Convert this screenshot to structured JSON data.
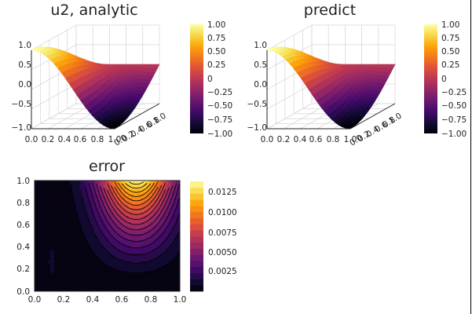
{
  "chart_data": [
    {
      "type": "surface",
      "title": "u2, analytic",
      "x_ticks": [
        "0.0",
        "0.2",
        "0.4",
        "0.6",
        "0.8",
        "1.0"
      ],
      "y_ticks": [
        "0.0",
        "0.2",
        "0.4",
        "0.6",
        "0.8",
        "1.0"
      ],
      "z_ticks": [
        "−1.0",
        "−0.5",
        "0.0",
        "0.5",
        "1.0"
      ],
      "zlim": [
        -1.0,
        1.0
      ],
      "colorbar": {
        "ticks": [
          "1.00",
          "0.75",
          "0.50",
          "0.25",
          "0",
          "−0.25",
          "−0.50",
          "−0.75",
          "−1.00"
        ],
        "range": [
          -1.0,
          1.0
        ],
        "colormap": "inferno"
      },
      "grid": true,
      "function": "cos(pi*x)*cos(pi*y/2)"
    },
    {
      "type": "surface",
      "title": "predict",
      "x_ticks": [
        "0.0",
        "0.2",
        "0.4",
        "0.6",
        "0.8",
        "1.0"
      ],
      "y_ticks": [
        "0.0",
        "0.2",
        "0.4",
        "0.6",
        "0.8",
        "1.0"
      ],
      "z_ticks": [
        "−1.0",
        "−0.5",
        "0.0",
        "0.5",
        "1.0"
      ],
      "zlim": [
        -1.0,
        1.0
      ],
      "colorbar": {
        "ticks": [
          "1.00",
          "0.75",
          "0.50",
          "0.25",
          "0",
          "−0.25",
          "−0.50",
          "−0.75",
          "−1.00"
        ],
        "range": [
          -1.0,
          1.0
        ],
        "colormap": "inferno"
      },
      "grid": true
    },
    {
      "type": "contour",
      "title": "error",
      "x_ticks": [
        "0.0",
        "0.2",
        "0.4",
        "0.6",
        "0.8",
        "1.0"
      ],
      "y_ticks": [
        "0.0",
        "0.2",
        "0.4",
        "0.6",
        "0.8",
        "1.0"
      ],
      "xlim": [
        0,
        1
      ],
      "ylim": [
        0,
        1
      ],
      "colorbar": {
        "ticks": [
          "0.0125",
          "0.0100",
          "0.0075",
          "0.0050",
          "0.0025"
        ],
        "range": [
          0.0,
          0.0138
        ],
        "colormap": "inferno"
      },
      "max_value": 0.0138,
      "max_location": [
        0.7,
        1.0
      ]
    }
  ],
  "colors": {
    "line": "#000000",
    "grid": "#d9d9d9",
    "text": "#222222"
  }
}
